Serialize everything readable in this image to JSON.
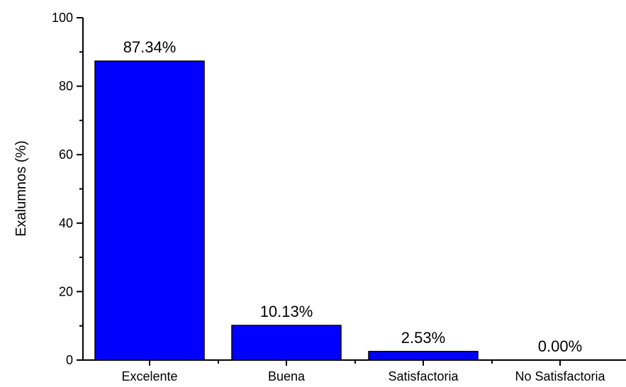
{
  "chart_data": {
    "type": "bar",
    "categories": [
      "Excelente",
      "Buena",
      "Satisfactoria",
      "No Satisfactoria"
    ],
    "values": [
      87.34,
      10.13,
      2.53,
      0.0
    ],
    "data_labels": [
      "87.34%",
      "10.13%",
      "2.53%",
      "0.00%"
    ],
    "title": "",
    "xlabel": "",
    "ylabel": "Exalumnos (%)",
    "ylim": [
      0,
      100
    ],
    "yticks": [
      0,
      20,
      40,
      60,
      80,
      100
    ],
    "ytick_labels": [
      "0",
      "20",
      "40",
      "60",
      "80",
      "100"
    ],
    "grid": false,
    "bar_color": "#0000ff",
    "bar_edge_color": "#000000"
  }
}
